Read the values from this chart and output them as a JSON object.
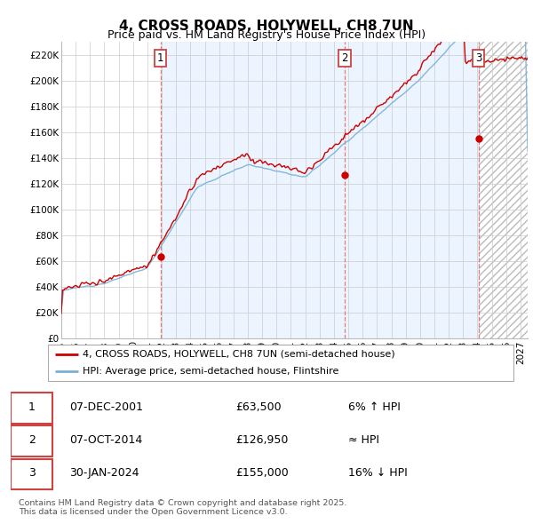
{
  "title": "4, CROSS ROADS, HOLYWELL, CH8 7UN",
  "subtitle": "Price paid vs. HM Land Registry's House Price Index (HPI)",
  "ylim": [
    0,
    230000
  ],
  "yticks": [
    0,
    20000,
    40000,
    60000,
    80000,
    100000,
    120000,
    140000,
    160000,
    180000,
    200000,
    220000
  ],
  "xlim_start": 1995.0,
  "xlim_end": 2027.5,
  "sale_dates": [
    2001.92,
    2014.76,
    2024.08
  ],
  "sale_prices": [
    63500,
    126950,
    155000
  ],
  "sale_labels": [
    "1",
    "2",
    "3"
  ],
  "vline_color": "#e87878",
  "hpi_line_color": "#7ab0d4",
  "price_line_color": "#cc0000",
  "shade_blue_color": "#ddeeff",
  "shade_blue_alpha": 0.55,
  "hatch_color": "#cccccc",
  "legend_label_price": "4, CROSS ROADS, HOLYWELL, CH8 7UN (semi-detached house)",
  "legend_label_hpi": "HPI: Average price, semi-detached house, Flintshire",
  "table_rows": [
    {
      "num": "1",
      "date": "07-DEC-2001",
      "price": "£63,500",
      "rel": "6% ↑ HPI"
    },
    {
      "num": "2",
      "date": "07-OCT-2014",
      "price": "£126,950",
      "rel": "≈ HPI"
    },
    {
      "num": "3",
      "date": "30-JAN-2024",
      "price": "£155,000",
      "rel": "16% ↓ HPI"
    }
  ],
  "footnote": "Contains HM Land Registry data © Crown copyright and database right 2025.\nThis data is licensed under the Open Government Licence v3.0.",
  "bg_color": "#ffffff",
  "grid_color": "#cccccc",
  "title_fontsize": 11,
  "subtitle_fontsize": 9,
  "axis_fontsize": 7.5,
  "legend_fontsize": 8,
  "table_fontsize": 9
}
